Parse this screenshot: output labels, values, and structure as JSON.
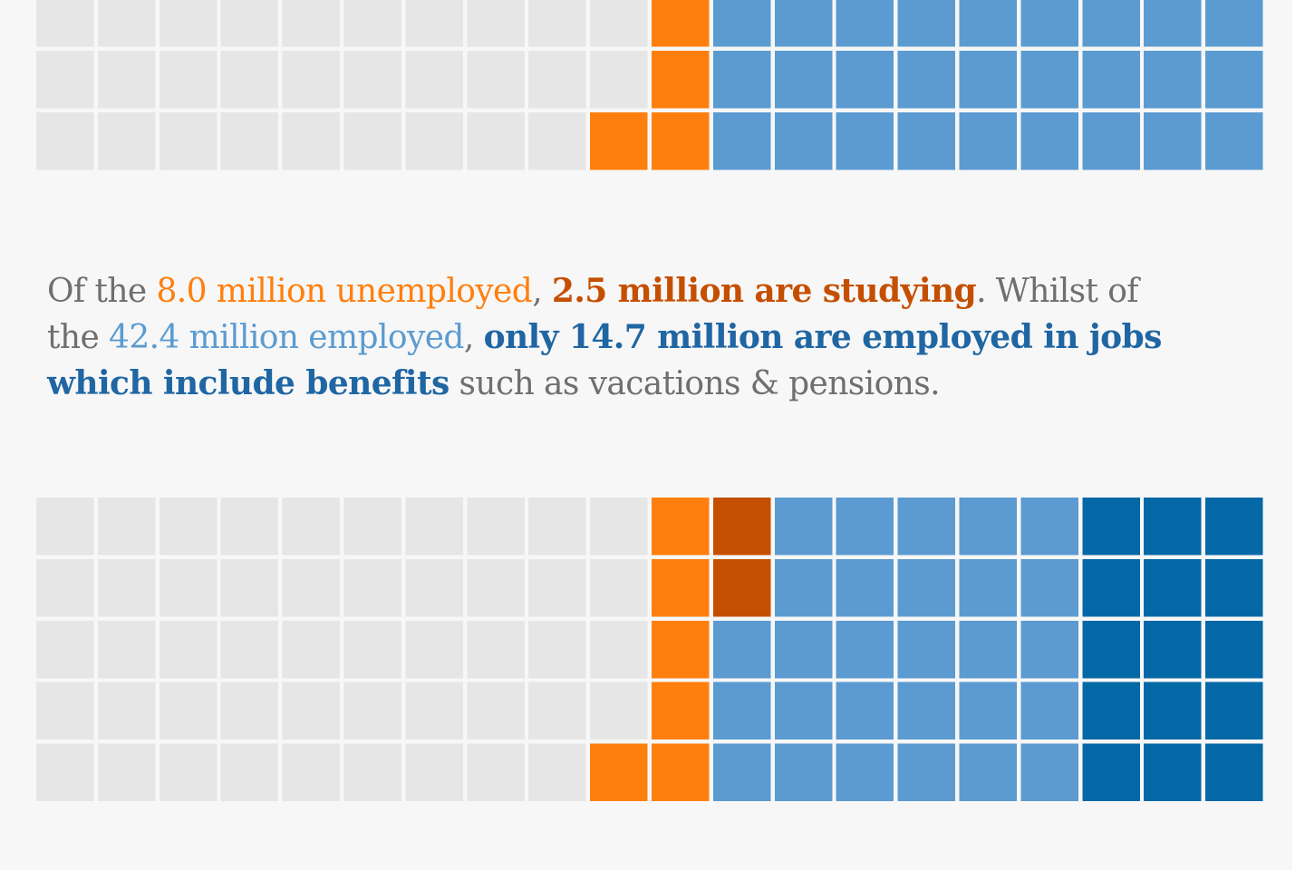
{
  "chart_data": [
    {
      "type": "waffle",
      "rows": 3,
      "columns": 20,
      "cells_per_row": [
        [
          "empty",
          "empty",
          "empty",
          "empty",
          "empty",
          "empty",
          "empty",
          "empty",
          "empty",
          "empty",
          "unemployed",
          "employed",
          "employed",
          "employed",
          "employed",
          "employed",
          "employed",
          "employed",
          "employed",
          "employed"
        ],
        [
          "empty",
          "empty",
          "empty",
          "empty",
          "empty",
          "empty",
          "empty",
          "empty",
          "empty",
          "empty",
          "unemployed",
          "employed",
          "employed",
          "employed",
          "employed",
          "employed",
          "employed",
          "employed",
          "employed",
          "employed"
        ],
        [
          "empty",
          "empty",
          "empty",
          "empty",
          "empty",
          "empty",
          "empty",
          "empty",
          "empty",
          "unemployed",
          "unemployed",
          "employed",
          "employed",
          "employed",
          "employed",
          "employed",
          "employed",
          "employed",
          "employed",
          "employed"
        ]
      ]
    },
    {
      "type": "waffle",
      "rows": 5,
      "columns": 20,
      "cells_per_row": [
        [
          "empty",
          "empty",
          "empty",
          "empty",
          "empty",
          "empty",
          "empty",
          "empty",
          "empty",
          "empty",
          "unemployed",
          "studying",
          "employed",
          "employed",
          "employed",
          "employed",
          "employed",
          "benefits",
          "benefits",
          "benefits"
        ],
        [
          "empty",
          "empty",
          "empty",
          "empty",
          "empty",
          "empty",
          "empty",
          "empty",
          "empty",
          "empty",
          "unemployed",
          "studying",
          "employed",
          "employed",
          "employed",
          "employed",
          "employed",
          "benefits",
          "benefits",
          "benefits"
        ],
        [
          "empty",
          "empty",
          "empty",
          "empty",
          "empty",
          "empty",
          "empty",
          "empty",
          "empty",
          "empty",
          "unemployed",
          "employed",
          "employed",
          "employed",
          "employed",
          "employed",
          "employed",
          "benefits",
          "benefits",
          "benefits"
        ],
        [
          "empty",
          "empty",
          "empty",
          "empty",
          "empty",
          "empty",
          "empty",
          "empty",
          "empty",
          "empty",
          "unemployed",
          "employed",
          "employed",
          "employed",
          "employed",
          "employed",
          "employed",
          "benefits",
          "benefits",
          "benefits"
        ],
        [
          "empty",
          "empty",
          "empty",
          "empty",
          "empty",
          "empty",
          "empty",
          "empty",
          "empty",
          "unemployed",
          "unemployed",
          "employed",
          "employed",
          "employed",
          "employed",
          "employed",
          "employed",
          "benefits",
          "benefits",
          "benefits"
        ]
      ]
    }
  ],
  "colors": {
    "empty": "#e6e6e6",
    "unemployed": "#ff7f0e",
    "studying": "#c54f00",
    "employed": "#5b9bd1",
    "benefits": "#0568a6",
    "caption_text": "#6f6f6f",
    "background": "#f7f7f7"
  },
  "caption": {
    "part1": "Of the ",
    "unemployed": "8.0 million unemployed",
    "sep1": ", ",
    "studying": "2.5 million are studying",
    "part2": ". Whilst of",
    "part3": "the ",
    "employed": "42.4 million employed",
    "sep2": ", ",
    "benefits_line2": "only 14.7 million are employed in jobs",
    "benefits_line3": "which include benefits",
    "part4": " such as vacations & pensions."
  }
}
